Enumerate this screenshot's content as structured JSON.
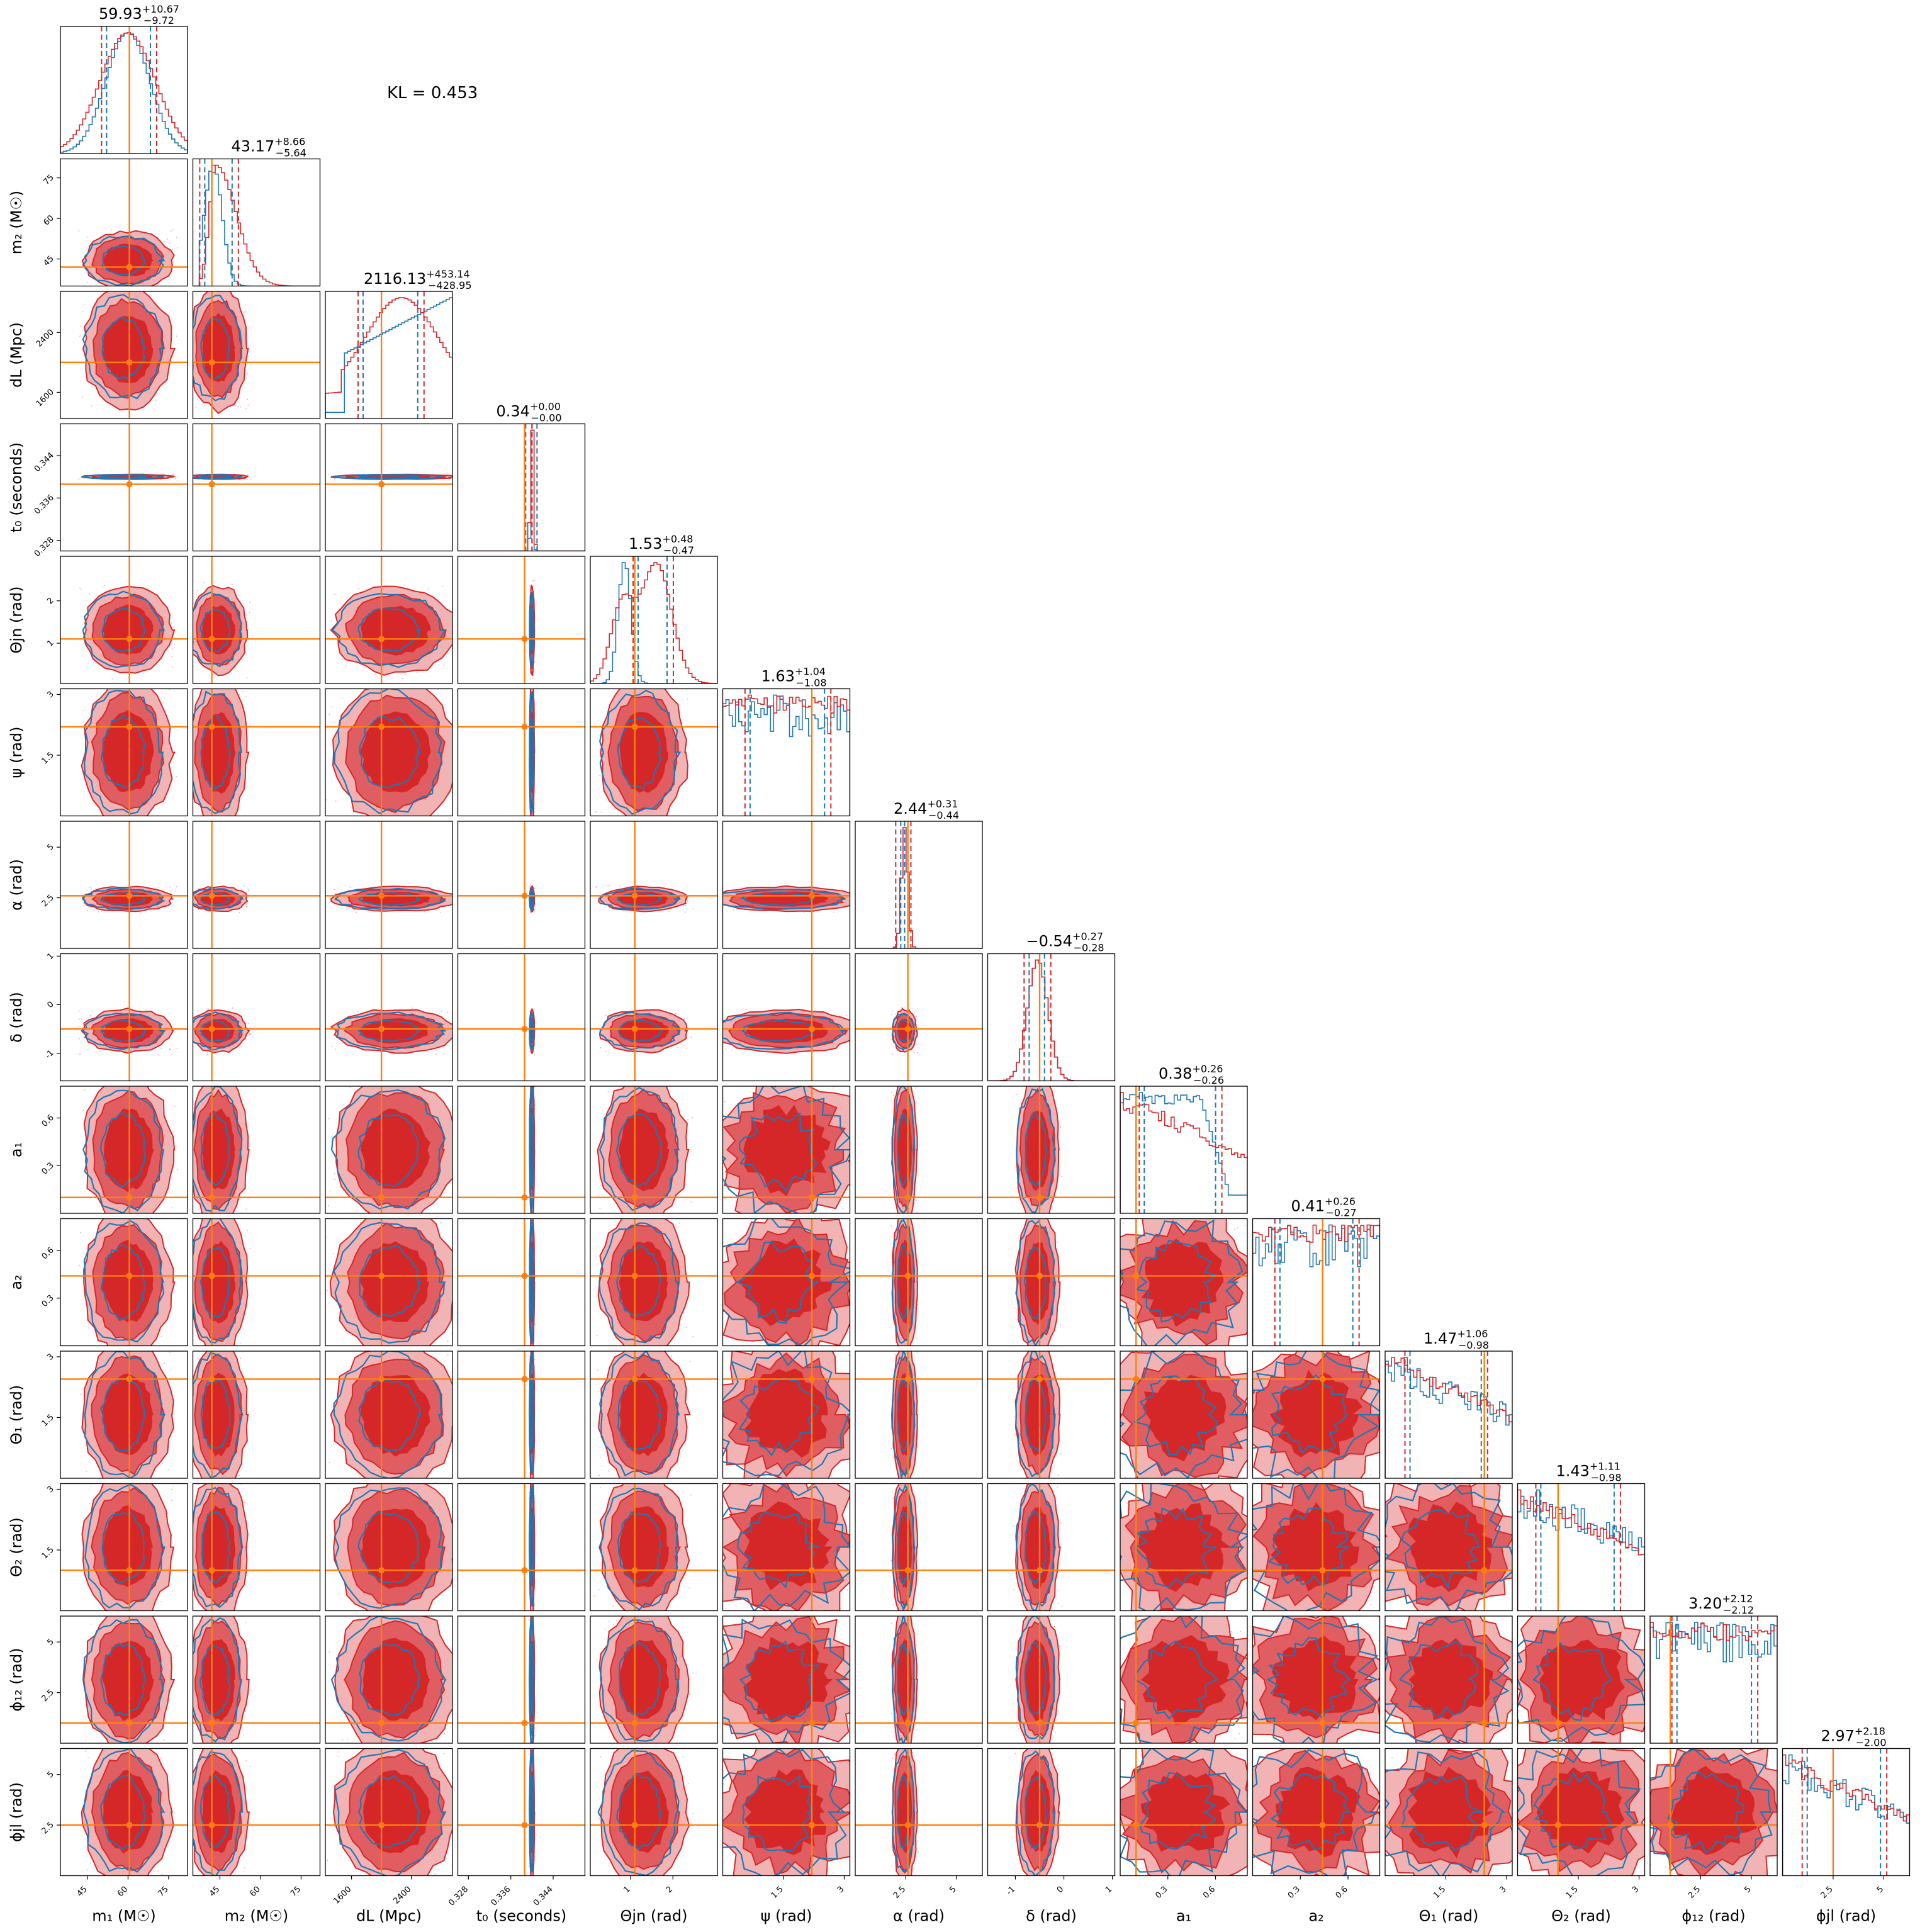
{
  "annotation": {
    "text": "KL = 0.453"
  },
  "colors": {
    "red": "#d62728",
    "red_light": "#f2b3b4",
    "red_mid": "#e05e61",
    "blue": "#1f77b4",
    "orange": "#ff7f0e"
  },
  "chart_data": {
    "type": "corner",
    "legend": "none",
    "series": [
      {
        "name": "",
        "color": "#d62728",
        "style": "filled contours"
      },
      {
        "name": "",
        "color": "#1f77b4",
        "style": "line contours"
      }
    ],
    "parameters": [
      {
        "key": "m1",
        "label": "m₁ (M☉)",
        "range": [
          35,
          82
        ],
        "ticks": [
          45,
          60,
          75
        ],
        "truth": 60.5,
        "median": 59.93,
        "plus": 10.67,
        "minus": 9.72,
        "title": {
          "main": "59.93",
          "sup": "+10.67",
          "sub": "−9.72"
        },
        "red_shape": "normal",
        "blue_shape": "normal_narrow"
      },
      {
        "key": "m2",
        "label": "m₂ (M☉)",
        "range": [
          35,
          82
        ],
        "ticks": [
          45,
          60,
          75
        ],
        "truth": 42,
        "median": 43.17,
        "plus": 8.66,
        "minus": 5.64,
        "title": {
          "main": "43.17",
          "sup": "+8.66",
          "sub": "−5.64"
        },
        "red_shape": "skew_right",
        "blue_shape": "narrow_left"
      },
      {
        "key": "dL",
        "label": "dL (Mpc)",
        "range": [
          1250,
          2950
        ],
        "ticks": [
          1600,
          2400
        ],
        "truth": 2000,
        "median": 2116.13,
        "plus": 453.14,
        "minus": 428.95,
        "title": {
          "main": "2116.13",
          "sup": "+453.14",
          "sub": "−428.95"
        },
        "red_shape": "broad",
        "blue_shape": "broad_right"
      },
      {
        "key": "t0",
        "label": "t₀ (seconds)",
        "range": [
          0.326,
          0.35
        ],
        "ticks": [
          0.328,
          0.336,
          0.344
        ],
        "truth": 0.3386,
        "median": 0.34,
        "plus": 0.0,
        "minus": 0.0,
        "title": {
          "main": "0.34",
          "sup": "+0.00",
          "sub": "−0.00"
        },
        "red_shape": "normal",
        "blue_shape": "normal_narrow"
      },
      {
        "key": "thetajn",
        "label": "Θjn (rad)",
        "range": [
          0.05,
          3.05
        ],
        "ticks": [
          1,
          2
        ],
        "truth": 1.1,
        "median": 1.53,
        "plus": 0.48,
        "minus": 0.47,
        "title": {
          "main": "1.53",
          "sup": "+0.48",
          "sub": "−0.47"
        },
        "red_shape": "bimodal",
        "blue_shape": "narrow"
      },
      {
        "key": "psi",
        "label": "ψ (rad)",
        "range": [
          0.0,
          3.14
        ],
        "ticks": [
          1.5,
          3.0
        ],
        "truth": 2.2,
        "median": 1.63,
        "plus": 1.04,
        "minus": 1.08,
        "title": {
          "main": "1.63",
          "sup": "+1.04",
          "sub": "−1.08"
        },
        "red_shape": "uniform",
        "blue_shape": "uniform_noisy"
      },
      {
        "key": "alpha",
        "label": "α (rad)",
        "range": [
          0.0,
          6.28
        ],
        "ticks": [
          2.5,
          5.0
        ],
        "truth": 2.6,
        "median": 2.44,
        "plus": 0.31,
        "minus": 0.44,
        "title": {
          "main": "2.44",
          "sup": "+0.31",
          "sub": "−0.44"
        },
        "red_shape": "spike",
        "blue_shape": "spike"
      },
      {
        "key": "delta",
        "label": "δ (rad)",
        "range": [
          -1.57,
          1.05
        ],
        "ticks": [
          -1,
          0,
          1
        ],
        "truth": -0.5,
        "median": -0.54,
        "plus": 0.27,
        "minus": 0.28,
        "title": {
          "main": "−0.54",
          "sup": "+0.27",
          "sub": "−0.28"
        },
        "red_shape": "peak",
        "blue_shape": "peak"
      },
      {
        "key": "a1",
        "label": "a₁",
        "range": [
          0.0,
          0.8
        ],
        "ticks": [
          0.3,
          0.6
        ],
        "truth": 0.1,
        "median": 0.38,
        "plus": 0.26,
        "minus": 0.26,
        "title": {
          "main": "0.38",
          "sup": "+0.26",
          "sub": "−0.26"
        },
        "red_shape": "decreasing",
        "blue_shape": "plateau"
      },
      {
        "key": "a2",
        "label": "a₂",
        "range": [
          0.0,
          0.8
        ],
        "ticks": [
          0.3,
          0.6
        ],
        "truth": 0.44,
        "median": 0.41,
        "plus": 0.26,
        "minus": 0.27,
        "title": {
          "main": "0.41",
          "sup": "+0.26",
          "sub": "−0.27"
        },
        "red_shape": "uniform",
        "blue_shape": "uniform_noisy"
      },
      {
        "key": "theta1",
        "label": "Θ₁ (rad)",
        "range": [
          0.0,
          3.14
        ],
        "ticks": [
          1.5,
          3.0
        ],
        "truth": 2.45,
        "median": 1.47,
        "plus": 1.06,
        "minus": 0.98,
        "title": {
          "main": "1.47",
          "sup": "+1.06",
          "sub": "−0.98"
        },
        "red_shape": "decreasing",
        "blue_shape": "decreasing_noisy"
      },
      {
        "key": "theta2",
        "label": "Θ₂ (rad)",
        "range": [
          0.0,
          3.14
        ],
        "ticks": [
          1.5,
          3.0
        ],
        "truth": 1.0,
        "median": 1.43,
        "plus": 1.11,
        "minus": 0.98,
        "title": {
          "main": "1.43",
          "sup": "+1.11",
          "sub": "−0.98"
        },
        "red_shape": "decreasing",
        "blue_shape": "decreasing_noisy"
      },
      {
        "key": "phi12",
        "label": "ϕ₁₂ (rad)",
        "range": [
          0.0,
          6.28
        ],
        "ticks": [
          2.5,
          5.0
        ],
        "truth": 1.0,
        "median": 3.2,
        "plus": 2.12,
        "minus": 2.12,
        "title": {
          "main": "3.20",
          "sup": "+2.12",
          "sub": "−2.12"
        },
        "red_shape": "uniform",
        "blue_shape": "uniform_noisy"
      },
      {
        "key": "phijl",
        "label": "ϕjl (rad)",
        "range": [
          0.0,
          6.28
        ],
        "ticks": [
          2.5,
          5.0
        ],
        "truth": 2.5,
        "median": 2.97,
        "plus": 2.18,
        "minus": 2.0,
        "title": {
          "main": "2.97",
          "sup": "+2.18",
          "sub": "−2.00"
        },
        "red_shape": "decreasing",
        "blue_shape": "decreasing_noisy"
      }
    ]
  }
}
